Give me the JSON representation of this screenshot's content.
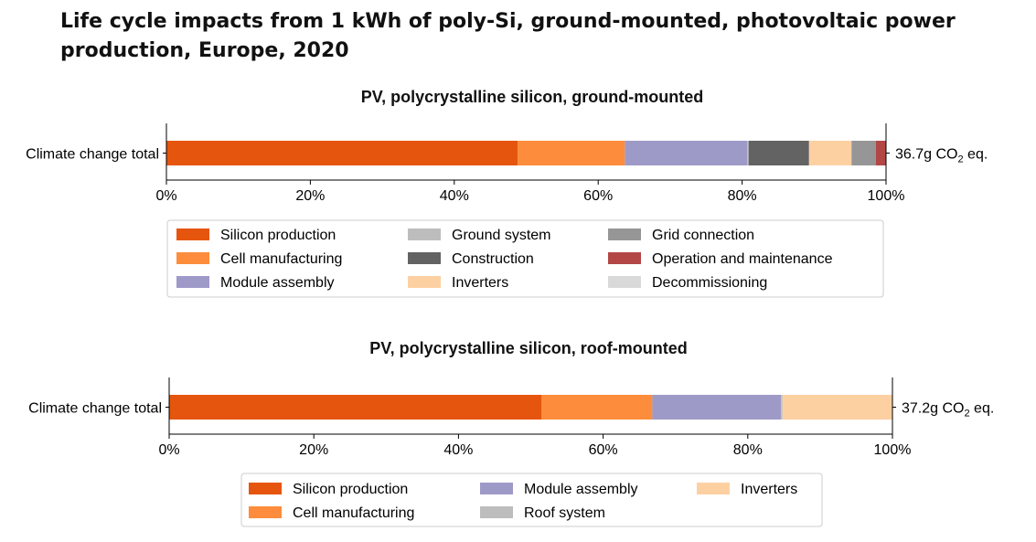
{
  "page": {
    "title": "Life cycle impacts from 1 kWh of poly-Si, ground-mounted, photovoltaic power production, Europe, 2020"
  },
  "chart_data": [
    {
      "type": "bar",
      "orientation": "horizontal-stacked",
      "title": "PV, polycrystalline silicon, ground-mounted",
      "categories": [
        "Climate change total"
      ],
      "xlim": [
        0,
        100
      ],
      "x_ticks": [
        "0%",
        "20%",
        "40%",
        "60%",
        "80%",
        "100%"
      ],
      "total_label": "36.7g",
      "unit_label": "CO",
      "unit_sub": "2",
      "unit_suffix": " eq.",
      "series": [
        {
          "name": "Silicon production",
          "values": [
            48.8
          ],
          "color": "#e6550d"
        },
        {
          "name": "Cell manufacturing",
          "values": [
            14.9
          ],
          "color": "#fd8d3c"
        },
        {
          "name": "Module assembly",
          "values": [
            17.0
          ],
          "color": "#9e9ac8"
        },
        {
          "name": "Ground system",
          "values": [
            0.2
          ],
          "color": "#bdbdbd"
        },
        {
          "name": "Construction",
          "values": [
            8.4
          ],
          "color": "#636363"
        },
        {
          "name": "Inverters",
          "values": [
            5.9
          ],
          "color": "#fdd0a2"
        },
        {
          "name": "Grid connection",
          "values": [
            3.4
          ],
          "color": "#969696"
        },
        {
          "name": "Operation and maintenance",
          "values": [
            1.4
          ],
          "color": "#b24745"
        },
        {
          "name": "Decommissioning",
          "values": [
            0.0
          ],
          "color": "#d9d9d9"
        }
      ],
      "legend_placement": "below"
    },
    {
      "type": "bar",
      "orientation": "horizontal-stacked",
      "title": "PV, polycrystalline silicon, roof-mounted",
      "categories": [
        "Climate change total"
      ],
      "xlim": [
        0,
        100
      ],
      "x_ticks": [
        "0%",
        "20%",
        "40%",
        "60%",
        "80%",
        "100%"
      ],
      "total_label": "37.2g",
      "unit_label": "CO",
      "unit_sub": "2",
      "unit_suffix": " eq.",
      "series": [
        {
          "name": "Silicon production",
          "values": [
            51.5
          ],
          "color": "#e6550d"
        },
        {
          "name": "Cell manufacturing",
          "values": [
            15.3
          ],
          "color": "#fd8d3c"
        },
        {
          "name": "Module assembly",
          "values": [
            17.8
          ],
          "color": "#9e9ac8"
        },
        {
          "name": "Roof system",
          "values": [
            0.2
          ],
          "color": "#bdbdbd"
        },
        {
          "name": "Inverters",
          "values": [
            15.2
          ],
          "color": "#fdd0a2"
        }
      ],
      "legend_placement": "below"
    }
  ]
}
